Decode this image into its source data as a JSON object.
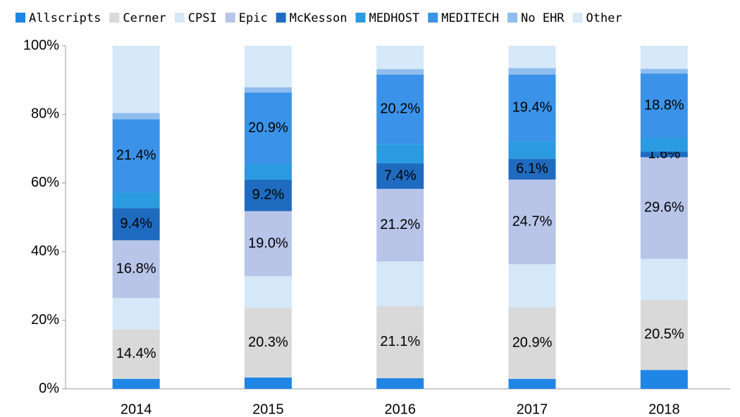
{
  "chart_data": {
    "type": "stacked_bar",
    "categories": [
      "2014",
      "2015",
      "2016",
      "2017",
      "2018"
    ],
    "series": [
      {
        "name": "Allscripts",
        "color": "#1f86e5",
        "values": [
          2.9,
          3.3,
          3.1,
          2.9,
          5.5
        ]
      },
      {
        "name": "Cerner",
        "color": "#d9d9d9",
        "values": [
          14.4,
          20.3,
          21.1,
          20.9,
          20.5
        ],
        "value_labels": [
          "14.4%",
          "20.3%",
          "21.1%",
          "20.9%",
          "20.5%"
        ]
      },
      {
        "name": "CPSI",
        "color": "#d4e8f8",
        "values": [
          9.2,
          9.2,
          12.9,
          12.5,
          11.9
        ]
      },
      {
        "name": "Epic",
        "color": "#b8c4e8",
        "values": [
          16.8,
          19.0,
          21.2,
          24.7,
          29.6
        ],
        "value_labels": [
          "16.8%",
          "19.0%",
          "21.2%",
          "24.7%",
          "29.6%"
        ]
      },
      {
        "name": "McKesson",
        "color": "#1f6bbf",
        "values": [
          9.4,
          9.2,
          7.4,
          6.1,
          1.6
        ],
        "value_labels": [
          "9.4%",
          "9.2%",
          "7.4%",
          "6.1%",
          "1.6%"
        ]
      },
      {
        "name": "MEDHOST",
        "color": "#2a9be0",
        "values": [
          4.5,
          4.5,
          5.7,
          5.1,
          4.0
        ]
      },
      {
        "name": "MEDITECH",
        "color": "#3a93e8",
        "values": [
          21.4,
          20.9,
          20.2,
          19.4,
          18.8
        ],
        "value_labels": [
          "21.4%",
          "20.9%",
          "20.2%",
          "19.4%",
          "18.8%"
        ]
      },
      {
        "name": "No EHR",
        "color": "#8fbdef",
        "values": [
          1.8,
          1.5,
          1.6,
          1.9,
          1.4
        ]
      },
      {
        "name": "Other",
        "color": "#d6e9f9",
        "values": [
          19.6,
          12.1,
          6.8,
          6.5,
          6.7
        ]
      }
    ],
    "ylim": [
      0,
      100
    ],
    "yticks": [
      {
        "value": 0,
        "label": "0%"
      },
      {
        "value": 20,
        "label": "20%"
      },
      {
        "value": 40,
        "label": "40%"
      },
      {
        "value": 60,
        "label": "60%"
      },
      {
        "value": 80,
        "label": "80%"
      },
      {
        "value": 100,
        "label": "100%"
      }
    ],
    "legend": "top",
    "grid": false
  }
}
